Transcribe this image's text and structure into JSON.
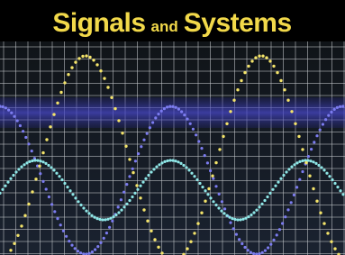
{
  "cover": {
    "title": {
      "first": "Signals",
      "middle": "and",
      "last": "Systems"
    }
  }
}
